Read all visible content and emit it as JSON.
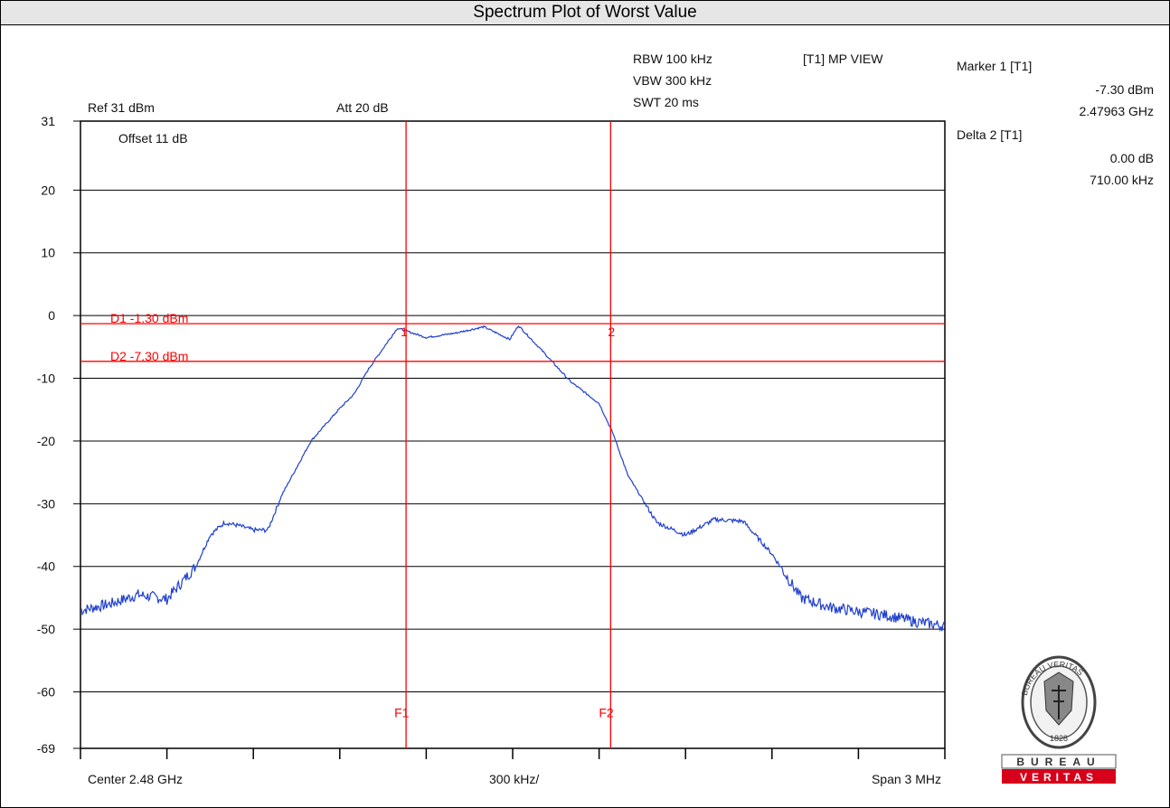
{
  "title": "Spectrum Plot of Worst Value",
  "settings": {
    "rbw": "RBW 100 kHz",
    "vbw": "VBW 300 kHz",
    "swt": "SWT 20 ms",
    "view": "[T1] MP VIEW",
    "ref": "Ref 31 dBm",
    "att": "Att  20 dB",
    "offset": "Offset 11 dB"
  },
  "marker_panel": {
    "marker1_title": "Marker 1 [T1]",
    "marker1_level": "-7.30 dBm",
    "marker1_freq": "2.47963 GHz",
    "delta_title": "Delta 2 [T1]",
    "delta_level": "0.00 dB",
    "delta_freq": "710.00 kHz"
  },
  "footer": {
    "center": "Center 2.48 GHz",
    "per_div": "300 kHz/",
    "span": "Span 3 MHz"
  },
  "logo": {
    "text": "BUREAU",
    "sub_text": "VERITAS",
    "seal_text": "BUREAU VERITAS",
    "year": "1828"
  },
  "colors": {
    "trace": "#1f3fcf",
    "lines": "#ff0000",
    "grid": "#000000",
    "logo_red": "#d7001b"
  },
  "chart_data": {
    "type": "line",
    "title": "Spectrum Plot of Worst Value",
    "xlabel": "",
    "ylabel": "",
    "xlim": [
      2478.5,
      2481.5
    ],
    "x_unit": "MHz",
    "ylim": [
      -69,
      31
    ],
    "yticks": [
      31,
      20,
      10,
      0,
      -10,
      -20,
      -30,
      -40,
      -50,
      -60,
      -69
    ],
    "grid": true,
    "series": [
      {
        "name": "",
        "x": [
          2478.5,
          2478.6,
          2478.7,
          2478.8,
          2478.9,
          2478.95,
          2479.0,
          2479.05,
          2479.1,
          2479.15,
          2479.2,
          2479.3,
          2479.4,
          2479.45,
          2479.5,
          2479.6,
          2479.7,
          2479.8,
          2479.9,
          2479.99,
          2480.02,
          2480.1,
          2480.2,
          2480.3,
          2480.35,
          2480.4,
          2480.5,
          2480.6,
          2480.7,
          2480.8,
          2480.9,
          2481.0,
          2481.1,
          2481.2,
          2481.3,
          2481.4,
          2481.5
        ],
        "y": [
          -47.0,
          -46.0,
          -44.5,
          -45.2,
          -40.0,
          -35.0,
          -33.0,
          -33.5,
          -34.2,
          -34.2,
          -28.5,
          -20.0,
          -14.8,
          -12.5,
          -8.5,
          -2.0,
          -3.5,
          -2.8,
          -1.8,
          -3.8,
          -1.6,
          -5.5,
          -10.5,
          -14.0,
          -19.0,
          -25.5,
          -33.0,
          -35.0,
          -32.5,
          -32.8,
          -38.0,
          -45.0,
          -46.5,
          -47.2,
          -47.8,
          -48.8,
          -49.5
        ]
      }
    ],
    "markers": [
      {
        "label": "1",
        "x": 2479.63
      },
      {
        "label": "2",
        "x": 2480.34
      }
    ],
    "display_lines": [
      {
        "label": "D1 -1.30 dBm",
        "y": -1.3
      },
      {
        "label": "D2 -7.30 dBm",
        "y": -7.3
      }
    ],
    "frequency_lines": [
      {
        "label": "F1",
        "x": 2479.63
      },
      {
        "label": "F2",
        "x": 2480.34
      }
    ]
  }
}
